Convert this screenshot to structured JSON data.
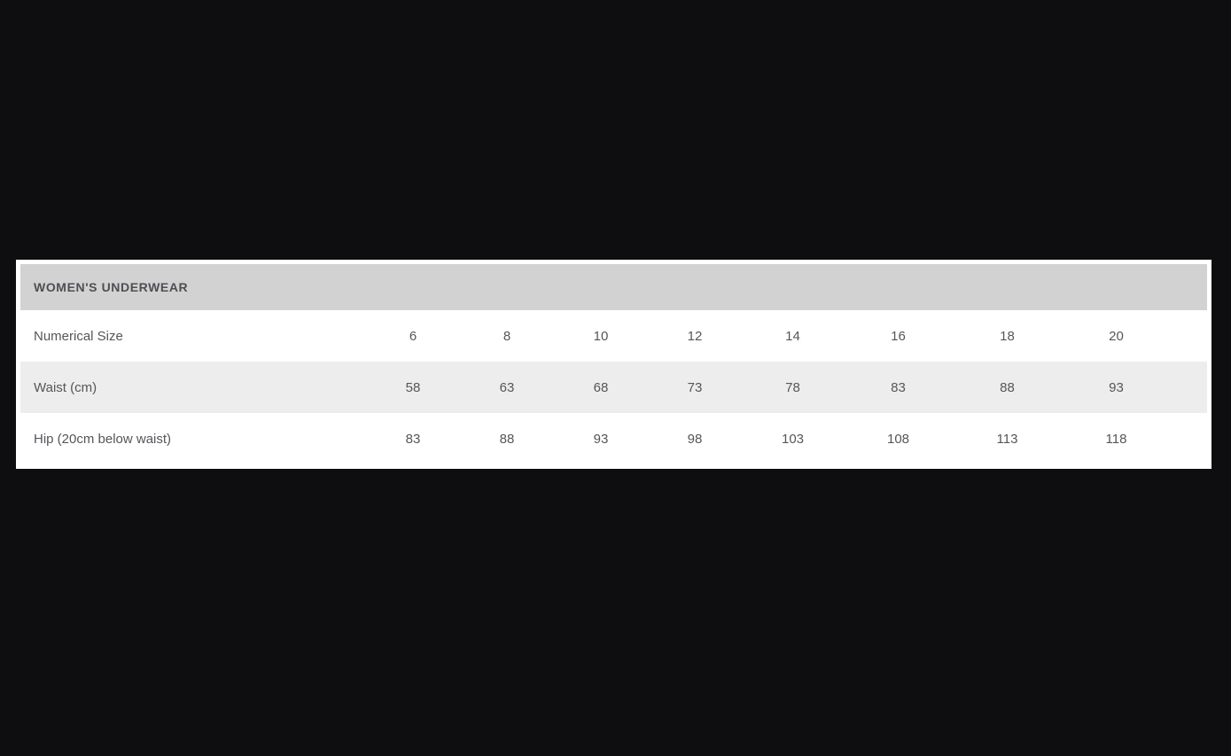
{
  "page": {
    "background_color": "#0e0e10"
  },
  "size_chart": {
    "title": "WOMEN'S UNDERWEAR",
    "colors": {
      "page_background": "#0e0e10",
      "panel_background": "#ffffff",
      "header_background": "#d2d2d2",
      "alt_row_background": "#ededed",
      "header_text": "#4d4f54",
      "cell_text": "#55565a"
    },
    "rows": [
      {
        "label": "Numerical Size",
        "values": [
          "6",
          "8",
          "10",
          "12",
          "14",
          "16",
          "18",
          "20"
        ]
      },
      {
        "label": "Waist (cm)",
        "values": [
          "58",
          "63",
          "68",
          "73",
          "78",
          "83",
          "88",
          "93"
        ]
      },
      {
        "label": "Hip (20cm below waist)",
        "values": [
          "83",
          "88",
          "93",
          "98",
          "103",
          "108",
          "113",
          "118"
        ]
      }
    ]
  }
}
